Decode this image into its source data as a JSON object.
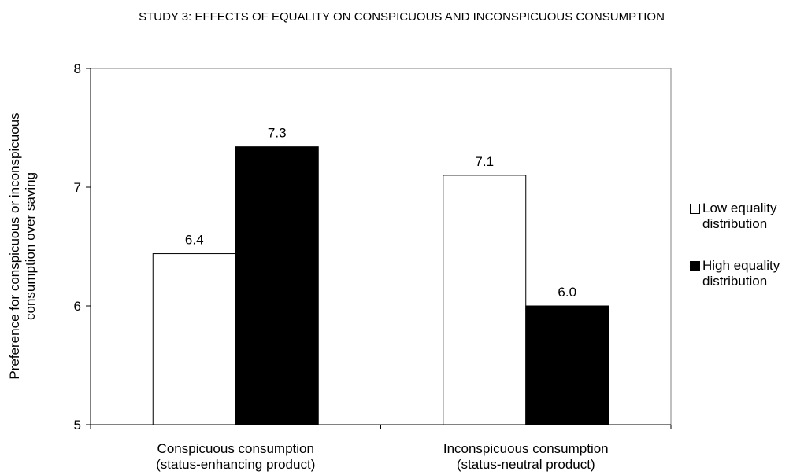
{
  "chart_data": {
    "type": "bar",
    "title": "STUDY 3: EFFECTS OF EQUALITY ON CONSPICUOUS AND INCONSPICUOUS CONSUMPTION",
    "y_label": [
      "Preference for conspicuous or inconspicuous",
      "consumption over saving"
    ],
    "categories": [
      [
        "Conspicuous consumption",
        "(status-enhancing product)"
      ],
      [
        "Inconspicuous consumption",
        "(status-neutral product)"
      ]
    ],
    "series": [
      {
        "name": "Low equality distribution",
        "color": "#ffffff",
        "values": [
          6.44,
          7.1
        ],
        "value_labels": [
          "6.4",
          "7.1"
        ]
      },
      {
        "name": "High equality distribution",
        "color": "#000000",
        "values": [
          7.34,
          6.0
        ],
        "value_labels": [
          "7.3",
          "6.0"
        ]
      }
    ],
    "ylim": [
      5,
      8
    ],
    "yticks": [
      5,
      6,
      7,
      8
    ],
    "legend": "right"
  }
}
